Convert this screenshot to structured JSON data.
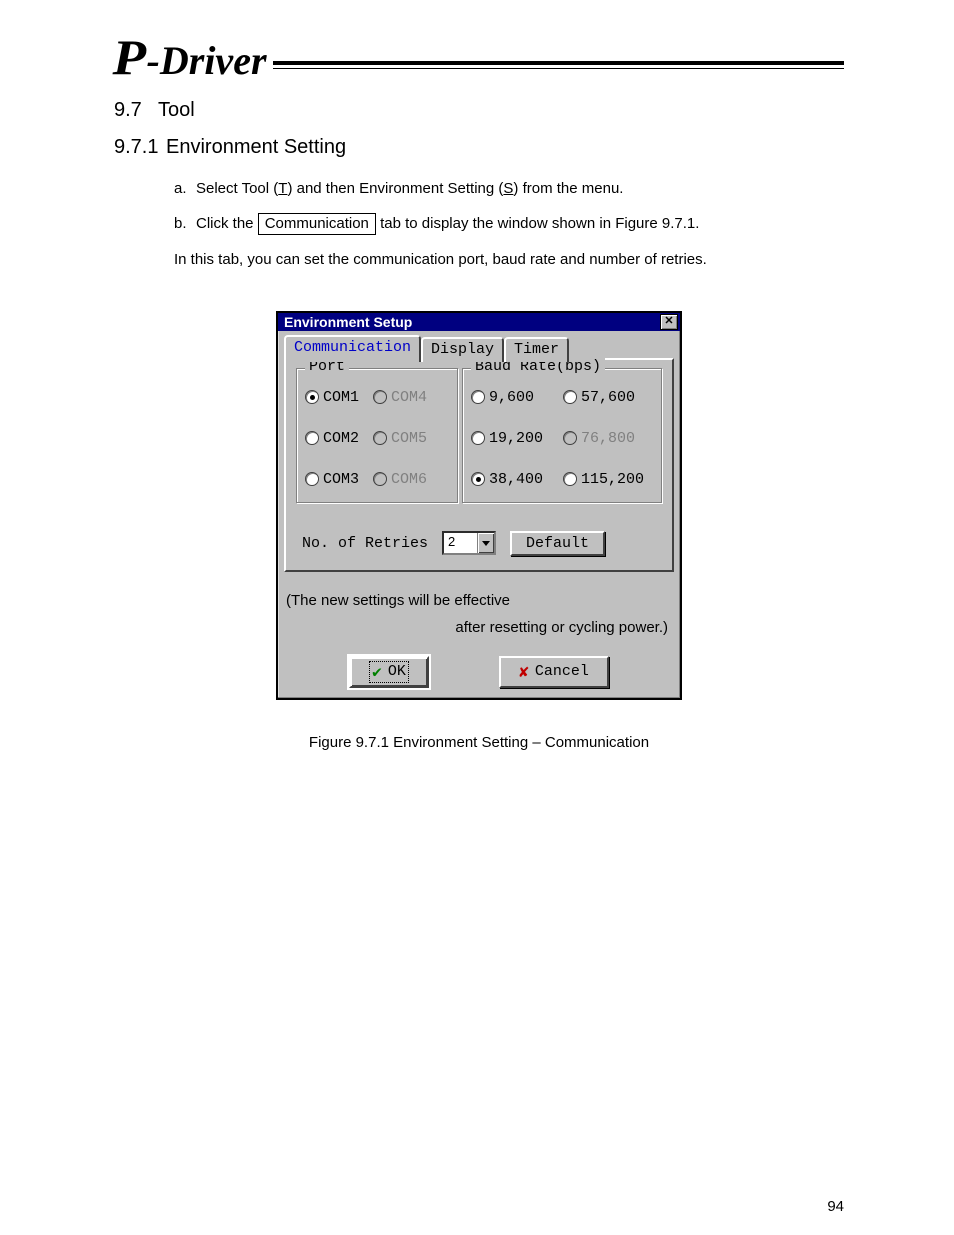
{
  "logo": {
    "p": "P",
    "rest": "-Driver"
  },
  "h1": {
    "num": "9.7",
    "title": "Tool"
  },
  "h2": {
    "num": "9.7.1",
    "title": "Environment Setting"
  },
  "steps": {
    "a_prefix": "a.",
    "a_1": "Select Tool (",
    "a_u1": "T",
    "a_2": ") and then Environment Setting (",
    "a_u2": "S",
    "a_3": ") from the menu.",
    "b_prefix": "b.",
    "b_1": "Click the ",
    "b_btn": "Communication",
    "b_2": " tab to display the window shown in Figure 9.7.1.",
    "c": "In this tab, you can set the communication port, baud rate and number of retries."
  },
  "dlg": {
    "title": "Environment Setup",
    "tabs": {
      "t1": "Communication",
      "t2": "Display",
      "t3": "Timer"
    },
    "port": {
      "legend": "Port",
      "options": [
        {
          "label": "COM1",
          "selected": true,
          "disabled": false
        },
        {
          "label": "COM4",
          "selected": false,
          "disabled": true
        },
        {
          "label": "COM2",
          "selected": false,
          "disabled": false
        },
        {
          "label": "COM5",
          "selected": false,
          "disabled": true
        },
        {
          "label": "COM3",
          "selected": false,
          "disabled": false
        },
        {
          "label": "COM6",
          "selected": false,
          "disabled": true
        }
      ]
    },
    "baud": {
      "legend": "Baud Rate(bps)",
      "options": [
        {
          "label": "9,600",
          "selected": false,
          "disabled": false
        },
        {
          "label": "57,600",
          "selected": false,
          "disabled": false
        },
        {
          "label": "19,200",
          "selected": false,
          "disabled": false
        },
        {
          "label": "76,800",
          "selected": false,
          "disabled": true
        },
        {
          "label": "38,400",
          "selected": true,
          "disabled": false
        },
        {
          "label": "115,200",
          "selected": false,
          "disabled": false
        }
      ]
    },
    "retries": {
      "label": "No. of Retries",
      "value": "2",
      "default_btn": "Default"
    },
    "note1": "(The new settings will be effective",
    "note2": "after resetting or cycling power.)",
    "ok": "OK",
    "cancel": "Cancel"
  },
  "figcap": "Figure 9.7.1    Environment Setting – Communication",
  "pagenum": "94"
}
